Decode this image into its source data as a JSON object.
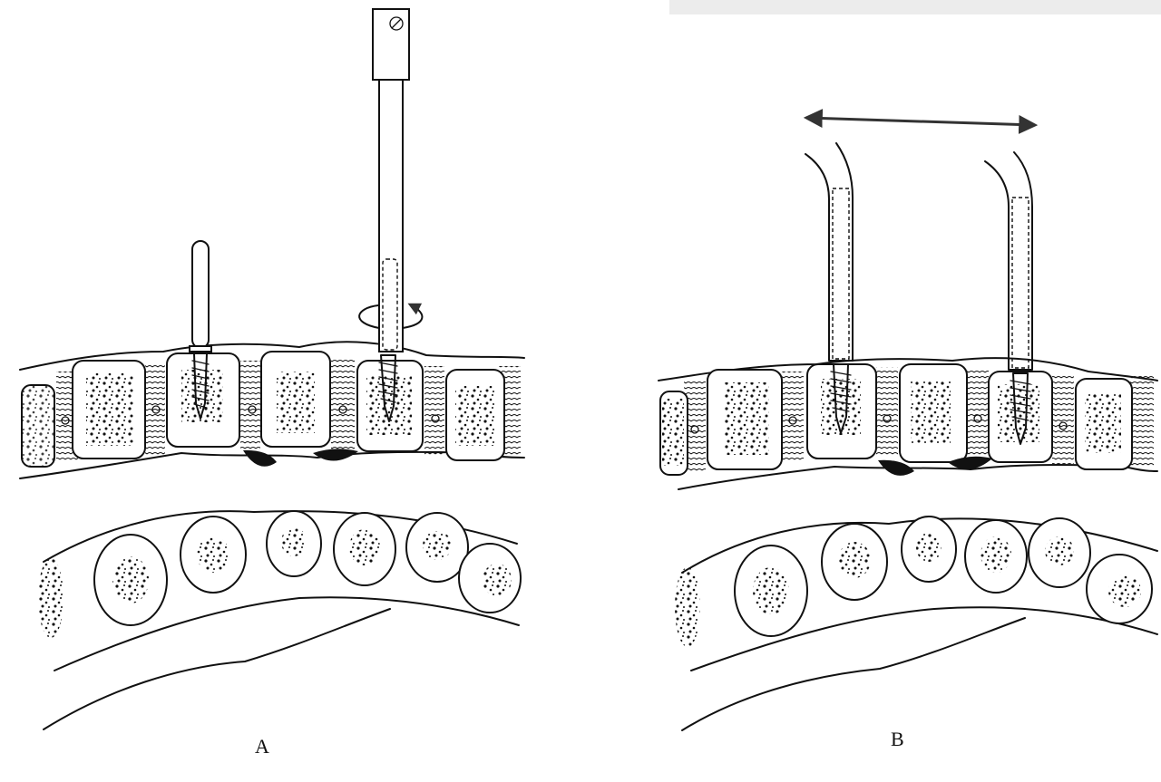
{
  "panels": [
    {
      "id": "A",
      "label": "A"
    },
    {
      "id": "B",
      "label": "B"
    }
  ],
  "icons": {
    "rotation": "rotation-arrow-icon",
    "distraction": "double-headed-arrow-icon"
  }
}
